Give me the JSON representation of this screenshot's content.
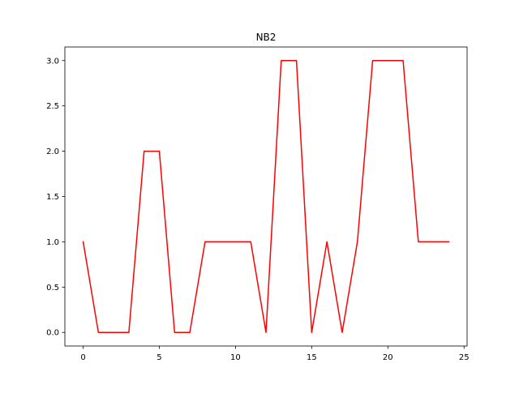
{
  "chart_data": {
    "type": "line",
    "title": "NB2",
    "xlabel": "",
    "ylabel": "",
    "xlim": [
      -1.2,
      25.2
    ],
    "ylim": [
      -0.15,
      3.15
    ],
    "grid": false,
    "x_ticks": [
      0,
      5,
      10,
      15,
      20,
      25
    ],
    "x_tick_labels": [
      "0",
      "5",
      "10",
      "15",
      "20",
      "25"
    ],
    "y_ticks": [
      0.0,
      0.5,
      1.0,
      1.5,
      2.0,
      2.5,
      3.0
    ],
    "y_tick_labels": [
      "0.0",
      "0.5",
      "1.0",
      "1.5",
      "2.0",
      "2.5",
      "3.0"
    ],
    "series": [
      {
        "color": "#ff0000",
        "x": [
          0,
          1,
          2,
          3,
          4,
          5,
          6,
          7,
          8,
          9,
          10,
          11,
          12,
          13,
          14,
          15,
          16,
          17,
          18,
          19,
          20,
          21,
          22,
          23,
          24
        ],
        "values": [
          1,
          0,
          0,
          0,
          2,
          2,
          0,
          0,
          1,
          1,
          1,
          1,
          0,
          3,
          3,
          0,
          1,
          0,
          1,
          3,
          3,
          3,
          1,
          1,
          1
        ]
      }
    ]
  }
}
